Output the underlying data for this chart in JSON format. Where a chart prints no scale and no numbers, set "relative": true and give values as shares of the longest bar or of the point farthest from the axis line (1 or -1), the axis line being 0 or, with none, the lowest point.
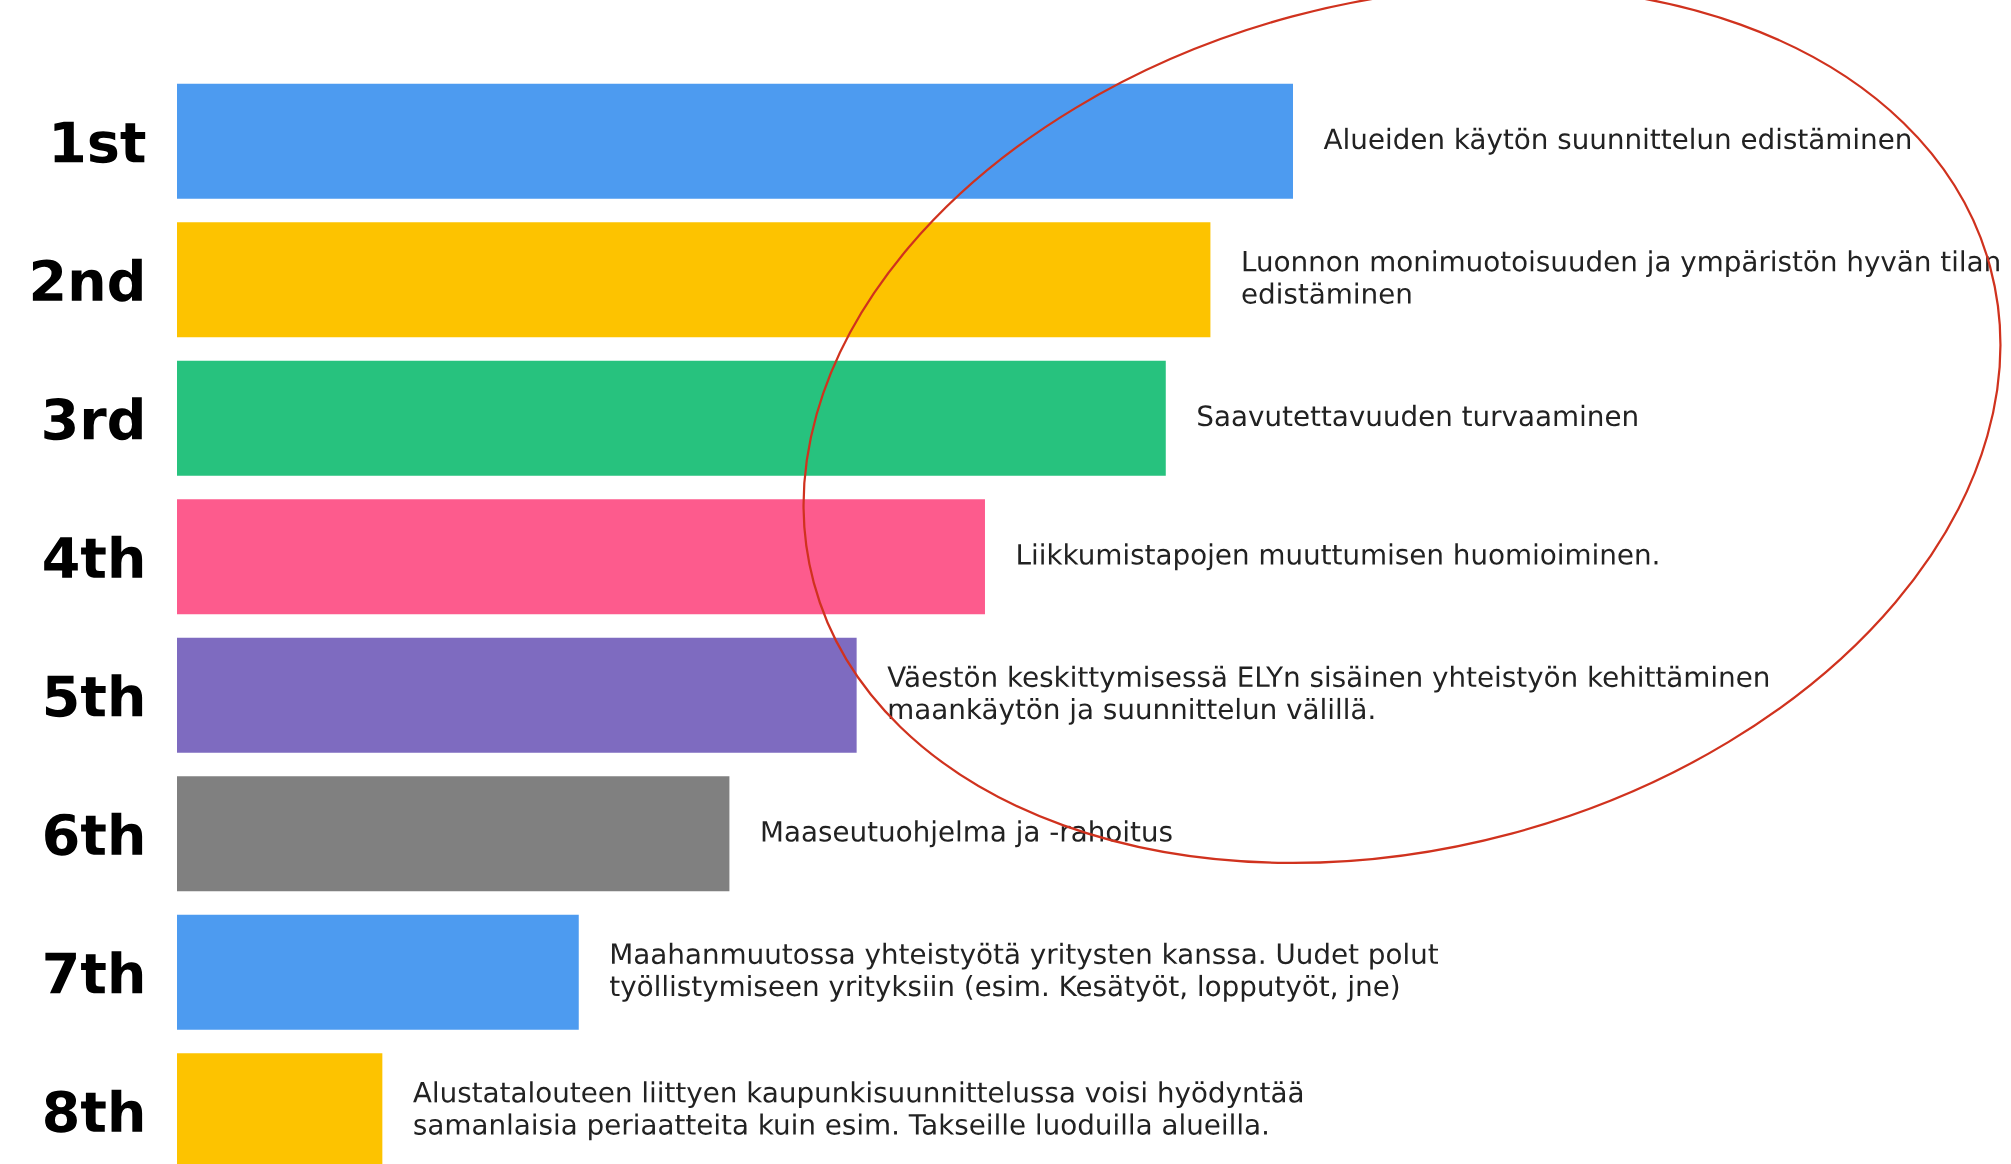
{
  "chart_data": {
    "type": "bar",
    "orientation": "horizontal",
    "relative": true,
    "grid": false,
    "legend": false,
    "categories": [
      "1st",
      "2nd",
      "3rd",
      "4th",
      "5th",
      "6th",
      "7th",
      "8th"
    ],
    "values": [
      1,
      0.926,
      0.886,
      0.724,
      0.609,
      0.495,
      0.36,
      0.184
    ],
    "colors": [
      "#4d9bf0",
      "#fdc300",
      "#27c27e",
      "#fd5b8d",
      "#7e6bc0",
      "#808080",
      "#4d9bf0",
      "#fdc300"
    ],
    "annotations": [
      {
        "text": "Alueiden käytön suunnittelun edistäminen",
        "x": 1,
        "y": "1st"
      },
      {
        "text": "Luonnon monimuotoisuuden ja ympäristön hyvän tilan\nedistäminen",
        "x": 0.926,
        "y": "2nd"
      },
      {
        "text": "Saavutettavuuden turvaaminen",
        "x": 0.886,
        "y": "3rd"
      },
      {
        "text": "Liikkumistapojen muuttumisen huomioiminen.",
        "x": 0.724,
        "y": "4th"
      },
      {
        "text": "Väestön keskittymisessä ELYn sisäinen yhteistyön kehittäminen\nmaankäytön ja suunnittelun välillä.",
        "x": 0.609,
        "y": "5th"
      },
      {
        "text": "Maaseutuohjelma ja -rahoitus",
        "x": 0.495,
        "y": "6th"
      },
      {
        "text": "Maahanmuutossa yhteistyötä yritysten kanssa. Uudet polut\ntyöllistymiseen yrityksiin (esim. Kesätyöt, lopputyöt, jne)",
        "x": 0.36,
        "y": "7th"
      },
      {
        "text": "Alustatalouteen liittyen kaupunkisuunnittelussa voisi hyödyntää\nsamanlaisia periaatteita kuin esim. Takseille luoduilla alueilla.",
        "x": 0.184,
        "y": "8th"
      }
    ]
  }
}
